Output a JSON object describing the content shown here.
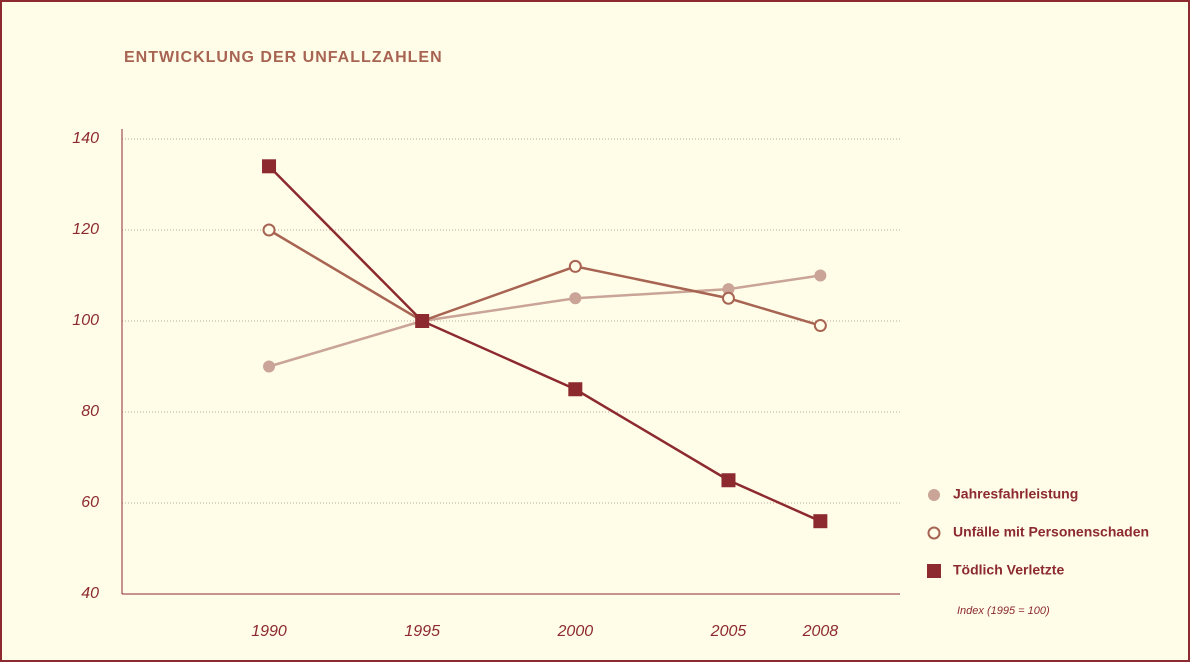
{
  "chart_data": {
    "type": "line",
    "title": "ENTWICKLUNG DER UNFALLZAHLEN",
    "note": "Index (1995 = 100)",
    "x": [
      1990,
      1995,
      2000,
      2005,
      2008
    ],
    "xlim": [
      1985.2,
      2010.6
    ],
    "ylim": [
      40,
      140
    ],
    "yticks": [
      40,
      60,
      80,
      100,
      120,
      140
    ],
    "grid": true,
    "legend": "right",
    "series": [
      {
        "name": "Jahresfahrleistung",
        "color": "#c9a497",
        "marker": "circle",
        "values": [
          90,
          100,
          105,
          107,
          110
        ]
      },
      {
        "name": "Unfälle mit Personenschaden",
        "color": "#a86452",
        "marker": "open-circle",
        "values": [
          120,
          100,
          112,
          105,
          99
        ]
      },
      {
        "name": "Tödlich Verletzte",
        "color": "#8c2a2f",
        "marker": "square",
        "values": [
          134,
          100,
          85,
          65,
          56
        ]
      }
    ]
  }
}
